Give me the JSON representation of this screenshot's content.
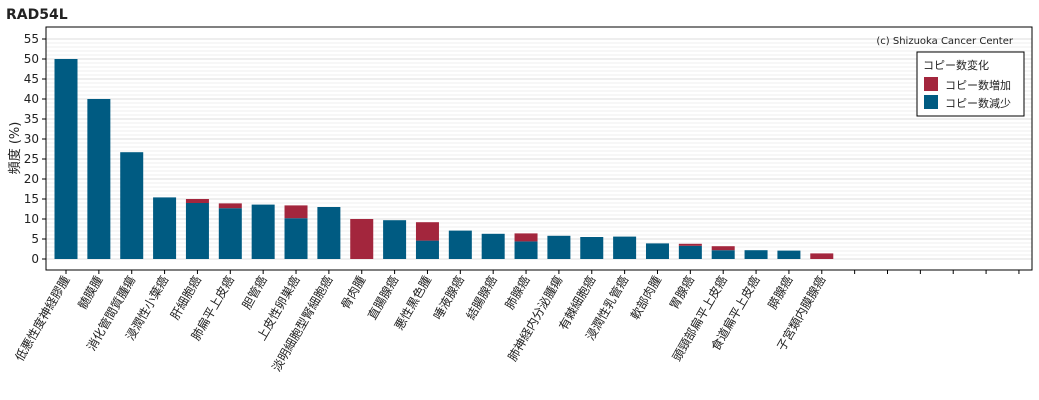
{
  "chart_data": {
    "type": "bar",
    "stacked": true,
    "title": "RAD54L",
    "ylabel": "頻度 (%)",
    "xlabel": "",
    "ylim": [
      0,
      55
    ],
    "yticks": [
      0,
      5,
      10,
      15,
      20,
      25,
      30,
      35,
      40,
      45,
      50,
      55
    ],
    "grid": true,
    "legend_position": "top-right",
    "legend_title": "コピー数変化",
    "credit": "(c) Shizuoka Cancer Center",
    "categories": [
      "低悪性度神経膠腫",
      "髄膜腫",
      "消化管間質腫瘍",
      "浸潤性小葉癌",
      "肝細胞癌",
      "肺扁平上皮癌",
      "胆管癌",
      "上皮性卵巣癌",
      "淡明細胞型腎細胞癌",
      "骨肉腫",
      "直腸腺癌",
      "悪性黒色腫",
      "唾液腺癌",
      "結腸腺癌",
      "肺腺癌",
      "肺神経内分泌腫瘍",
      "有棘細胞癌",
      "浸潤性乳管癌",
      "軟部肉腫",
      "胃腺癌",
      "頭頸部扁平上皮癌",
      "食道扁平上皮癌",
      "膵腺癌",
      "子宮類内膜腺癌",
      "",
      "",
      "",
      "",
      "",
      ""
    ],
    "series": [
      {
        "name": "コピー数減少",
        "color": "#005b82",
        "values": [
          50,
          40,
          26.7,
          15.4,
          14,
          12.7,
          13.6,
          10.2,
          13,
          0,
          9.7,
          4.6,
          7.1,
          6.3,
          4.4,
          5.8,
          5.5,
          5.6,
          3.9,
          3.3,
          2.2,
          2.2,
          2.1,
          0,
          0,
          0,
          0,
          0,
          0,
          0
        ]
      },
      {
        "name": "コピー数増加",
        "color": "#a3263d",
        "values": [
          0,
          0,
          0,
          0,
          1,
          1.2,
          0,
          3.2,
          0,
          10,
          0,
          4.6,
          0,
          0,
          2,
          0,
          0,
          0,
          0,
          0.5,
          1,
          0,
          0,
          1.4,
          0,
          0,
          0,
          0,
          0,
          0
        ]
      }
    ]
  }
}
